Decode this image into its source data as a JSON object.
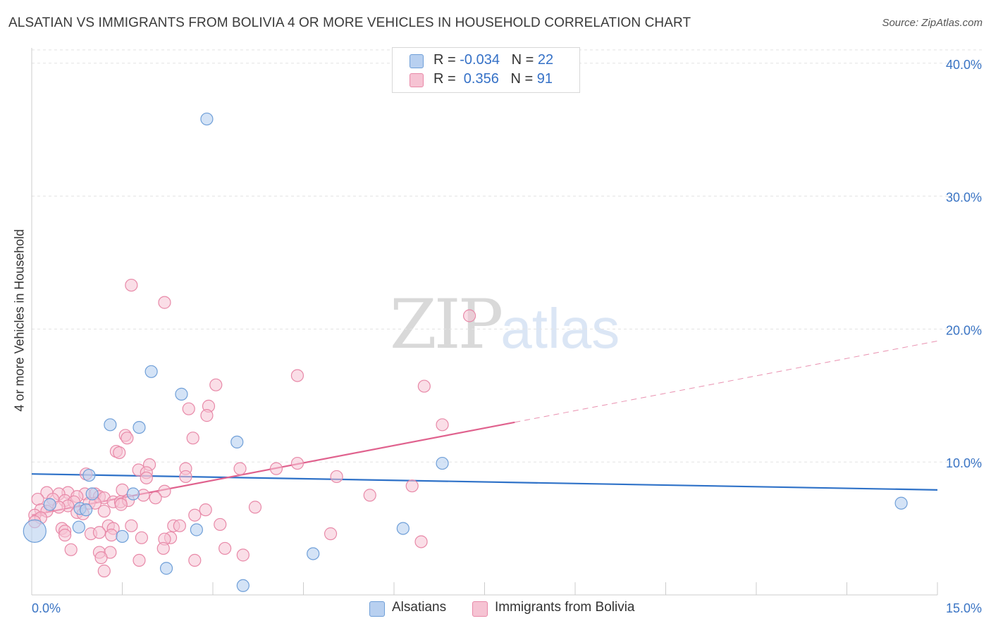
{
  "title": "ALSATIAN VS IMMIGRANTS FROM BOLIVIA 4 OR MORE VEHICLES IN HOUSEHOLD CORRELATION CHART",
  "source": "Source: ZipAtlas.com",
  "watermark": {
    "zip": "ZIP",
    "atlas": "atlas"
  },
  "legend_top": [
    {
      "r_label": "R = ",
      "r_value": "-0.034",
      "n_label": "N = ",
      "n_value": "22"
    },
    {
      "r_label": "R = ",
      "r_value": " 0.356",
      "n_label": "N = ",
      "n_value": "91"
    }
  ],
  "colors": {
    "blue_fill": "#b8d0f0",
    "blue_stroke": "#6f9fd8",
    "blue_line": "#2f72c8",
    "pink_fill": "#f6c3d3",
    "pink_stroke": "#e889a8",
    "pink_line": "#e0628e",
    "grid": "#e3e3e3",
    "tick_text": "#3a74c4"
  },
  "chart_data": {
    "type": "scatter",
    "title": "ALSATIAN VS IMMIGRANTS FROM BOLIVIA 4 OR MORE VEHICLES IN HOUSEHOLD CORRELATION CHART",
    "xlabel": "",
    "ylabel": "4 or more Vehicles in Household",
    "xlim": [
      0,
      15
    ],
    "ylim": [
      0,
      42
    ],
    "x_tick_labels": [
      "0.0%",
      "15.0%"
    ],
    "y_ticks": [
      10,
      20,
      30,
      40
    ],
    "y_tick_labels": [
      "10.0%",
      "20.0%",
      "30.0%",
      "40.0%"
    ],
    "grid": true,
    "legend": "bottom-center",
    "series": [
      {
        "name": "Alsatians",
        "color": "#6f9fd8",
        "r": -0.034,
        "n": 22,
        "trend": {
          "x0": 0,
          "y0": 9.1,
          "x1": 15,
          "y1": 7.9,
          "dashed_from": null
        },
        "points": [
          [
            2.9,
            35.8
          ],
          [
            1.98,
            16.8
          ],
          [
            2.48,
            15.1
          ],
          [
            1.3,
            12.8
          ],
          [
            1.78,
            12.6
          ],
          [
            3.4,
            11.5
          ],
          [
            6.8,
            9.9
          ],
          [
            0.95,
            9.0
          ],
          [
            1.0,
            7.6
          ],
          [
            1.68,
            7.6
          ],
          [
            0.8,
            6.5
          ],
          [
            0.9,
            6.4
          ],
          [
            0.78,
            5.1
          ],
          [
            1.5,
            4.4
          ],
          [
            2.73,
            4.9
          ],
          [
            6.15,
            5.0
          ],
          [
            4.66,
            3.1
          ],
          [
            2.23,
            2.0
          ],
          [
            3.5,
            0.7
          ],
          [
            14.4,
            6.9
          ],
          [
            0.05,
            4.8
          ],
          [
            0.3,
            6.8
          ]
        ]
      },
      {
        "name": "Immigrants from Bolivia",
        "color": "#e889a8",
        "r": 0.356,
        "n": 91,
        "trend": {
          "x0": 0,
          "y0": 6.0,
          "x1": 15,
          "y1": 19.1,
          "solid_until": 8.0
        },
        "points": [
          [
            1.65,
            23.3
          ],
          [
            2.2,
            22.0
          ],
          [
            7.25,
            21.0
          ],
          [
            4.4,
            16.5
          ],
          [
            6.5,
            15.7
          ],
          [
            3.05,
            15.8
          ],
          [
            2.6,
            14.0
          ],
          [
            2.93,
            14.2
          ],
          [
            2.9,
            13.5
          ],
          [
            6.8,
            12.8
          ],
          [
            1.55,
            12.0
          ],
          [
            1.58,
            11.8
          ],
          [
            2.67,
            11.8
          ],
          [
            1.4,
            10.8
          ],
          [
            1.45,
            10.7
          ],
          [
            1.95,
            9.8
          ],
          [
            4.4,
            9.9
          ],
          [
            1.77,
            9.4
          ],
          [
            1.9,
            9.2
          ],
          [
            2.55,
            9.5
          ],
          [
            3.45,
            9.5
          ],
          [
            4.05,
            9.5
          ],
          [
            5.05,
            8.9
          ],
          [
            2.55,
            8.9
          ],
          [
            1.9,
            8.8
          ],
          [
            0.9,
            9.1
          ],
          [
            6.3,
            8.2
          ],
          [
            1.5,
            7.9
          ],
          [
            2.2,
            7.8
          ],
          [
            0.6,
            7.7
          ],
          [
            0.88,
            7.6
          ],
          [
            1.05,
            7.6
          ],
          [
            0.25,
            7.7
          ],
          [
            0.45,
            7.6
          ],
          [
            5.6,
            7.5
          ],
          [
            1.85,
            7.5
          ],
          [
            0.75,
            7.4
          ],
          [
            1.12,
            7.4
          ],
          [
            1.2,
            7.3
          ],
          [
            0.1,
            7.2
          ],
          [
            0.35,
            7.2
          ],
          [
            0.55,
            7.1
          ],
          [
            0.7,
            7.0
          ],
          [
            1.35,
            7.0
          ],
          [
            1.47,
            7.0
          ],
          [
            2.05,
            7.3
          ],
          [
            1.6,
            7.1
          ],
          [
            0.95,
            6.9
          ],
          [
            0.3,
            6.8
          ],
          [
            0.6,
            6.7
          ],
          [
            1.48,
            6.8
          ],
          [
            3.7,
            6.6
          ],
          [
            2.88,
            6.4
          ],
          [
            0.15,
            6.4
          ],
          [
            0.25,
            6.3
          ],
          [
            0.75,
            6.2
          ],
          [
            0.85,
            6.1
          ],
          [
            0.05,
            6.0
          ],
          [
            0.15,
            5.8
          ],
          [
            0.45,
            6.6
          ],
          [
            1.05,
            6.9
          ],
          [
            1.2,
            6.3
          ],
          [
            1.27,
            5.2
          ],
          [
            1.35,
            5.0
          ],
          [
            1.65,
            5.2
          ],
          [
            2.35,
            5.2
          ],
          [
            2.45,
            5.2
          ],
          [
            2.7,
            6.0
          ],
          [
            3.12,
            5.3
          ],
          [
            0.5,
            5.0
          ],
          [
            0.55,
            4.8
          ],
          [
            0.98,
            4.6
          ],
          [
            1.12,
            4.7
          ],
          [
            1.32,
            4.5
          ],
          [
            1.82,
            4.3
          ],
          [
            2.3,
            4.3
          ],
          [
            2.2,
            4.2
          ],
          [
            0.55,
            4.5
          ],
          [
            4.95,
            4.6
          ],
          [
            6.45,
            4.0
          ],
          [
            0.65,
            3.4
          ],
          [
            1.12,
            3.2
          ],
          [
            1.3,
            3.2
          ],
          [
            2.18,
            3.5
          ],
          [
            3.2,
            3.5
          ],
          [
            3.5,
            3.0
          ],
          [
            1.15,
            2.8
          ],
          [
            1.78,
            2.6
          ],
          [
            2.7,
            2.6
          ],
          [
            1.2,
            1.8
          ],
          [
            0.05,
            5.5
          ]
        ]
      }
    ]
  }
}
